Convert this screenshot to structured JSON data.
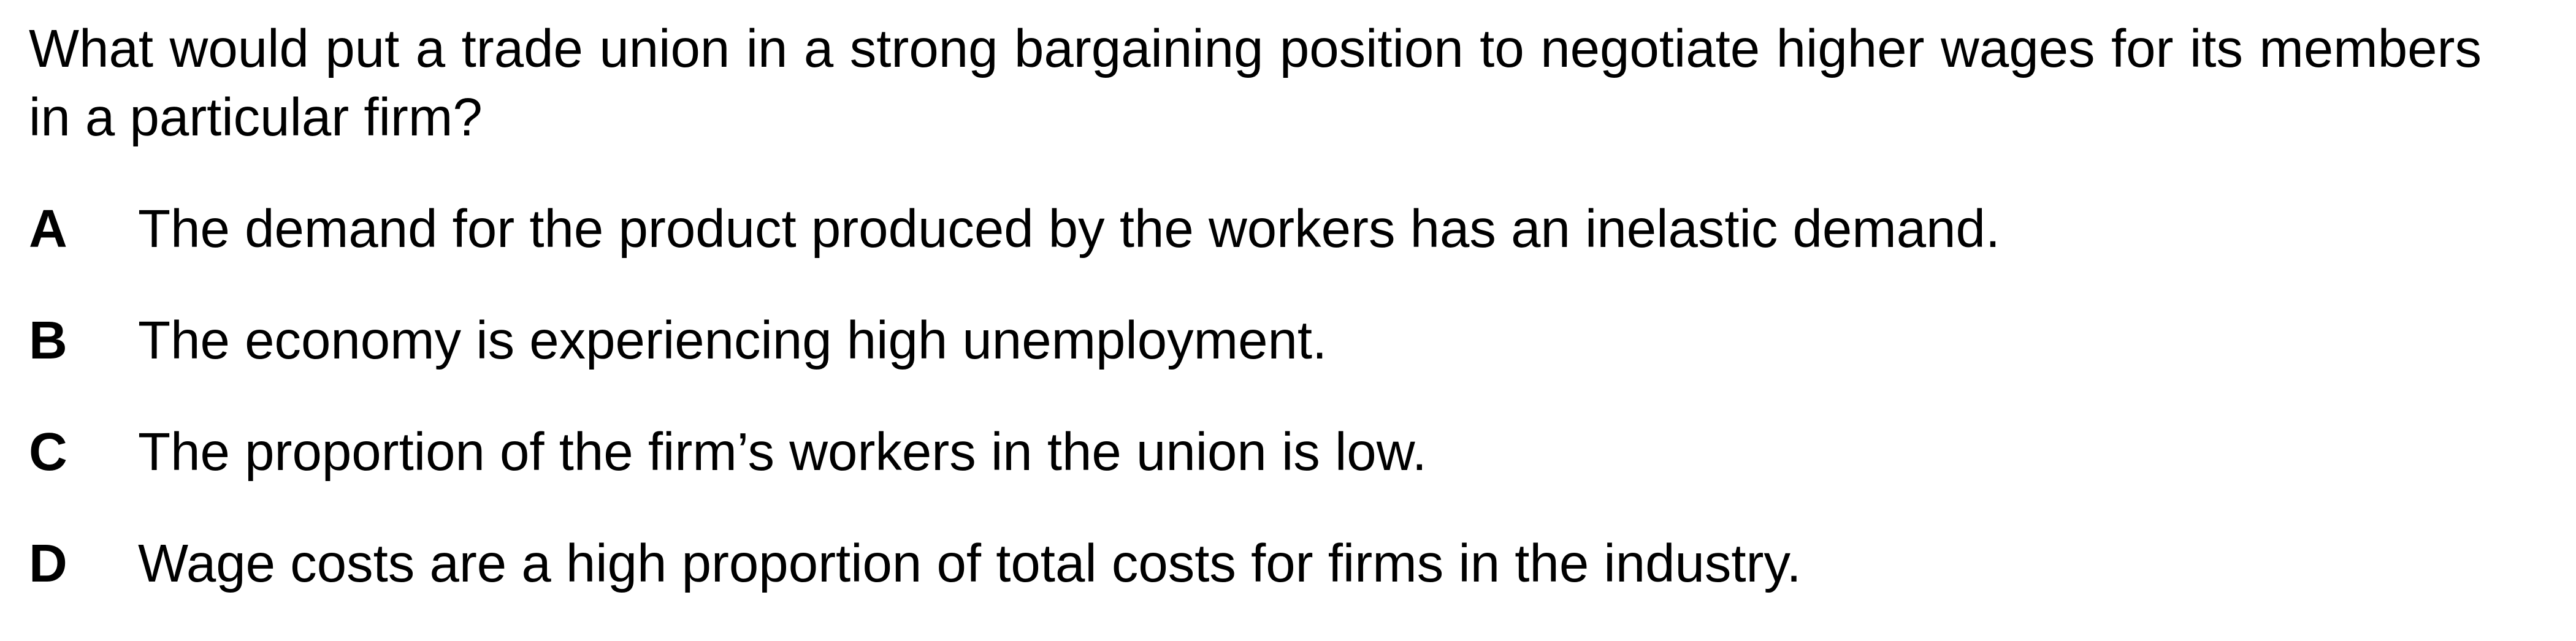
{
  "question": {
    "text": "What would put a trade union in a strong bargaining position to negotiate higher wages for its members in a particular firm?"
  },
  "options": [
    {
      "letter": "A",
      "text": "The demand for the product produced by the workers has an inelastic demand."
    },
    {
      "letter": "B",
      "text": "The economy is experiencing high unemployment."
    },
    {
      "letter": "C",
      "text": "The proportion of the firm’s workers in the union is low."
    },
    {
      "letter": "D",
      "text": "Wage costs are a high proportion of total costs for firms in the industry."
    }
  ]
}
